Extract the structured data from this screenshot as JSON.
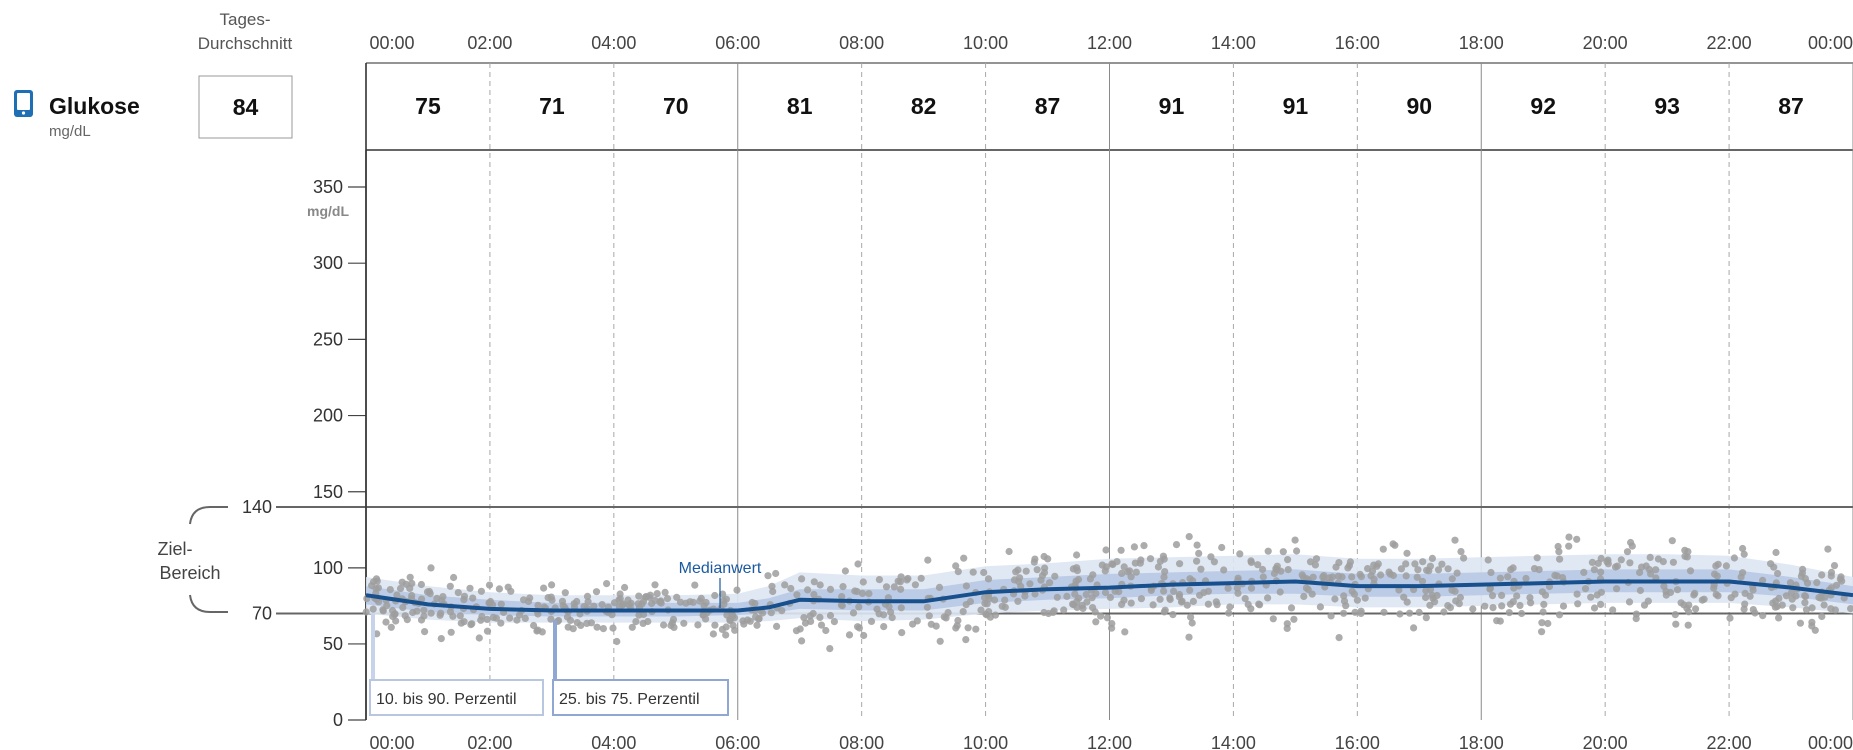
{
  "header": {
    "daily_average_label_line1": "Tages-",
    "daily_average_label_line2": "Durchschnitt",
    "glucose_label": "Glukose",
    "glucose_unit": "mg/dL",
    "daily_average_value": "84",
    "device_icon": "device-phone-icon"
  },
  "hours": [
    "00:00",
    "02:00",
    "04:00",
    "06:00",
    "08:00",
    "10:00",
    "12:00",
    "14:00",
    "16:00",
    "18:00",
    "20:00",
    "22:00",
    "00:00"
  ],
  "hourly_averages": [
    "75",
    "71",
    "70",
    "81",
    "82",
    "87",
    "91",
    "91",
    "90",
    "92",
    "93",
    "87"
  ],
  "colors": {
    "median": "#17508c",
    "iqr_band": "#b8c9e6",
    "outer_band": "#dde5f3",
    "points": "#9e9e9e",
    "target_line": "#666666",
    "icon": "#1f6fb5"
  },
  "chart_data": {
    "type": "line",
    "xlabel": "",
    "ylabel": "mg/dL",
    "xlim": [
      0,
      24
    ],
    "y_ticks": [
      0,
      50,
      70,
      100,
      140,
      150,
      200,
      250,
      300,
      350
    ],
    "target_range": {
      "label_line1": "Ziel-",
      "label_line2": "Bereich",
      "low": 70,
      "high": 140
    },
    "annotations": {
      "median_label": "Medianwert"
    },
    "legend": [
      {
        "name": "10. bis 90. Perzentil"
      },
      {
        "name": "25. bis 75. Perzentil"
      }
    ],
    "hours": [
      0,
      1,
      2,
      3,
      4,
      5,
      6,
      6.5,
      7,
      8,
      9,
      10,
      11,
      12,
      13,
      14,
      15,
      16,
      17,
      18,
      19,
      20,
      21,
      22,
      23,
      24
    ],
    "median": [
      82,
      76,
      73,
      72,
      72,
      72,
      72,
      74,
      79,
      78,
      78,
      84,
      86,
      87,
      89,
      90,
      91,
      88,
      88,
      89,
      90,
      91,
      91,
      91,
      87,
      82
    ],
    "p25": [
      76,
      71,
      69,
      68,
      68,
      68,
      69,
      70,
      73,
      72,
      72,
      77,
      79,
      80,
      82,
      83,
      83,
      81,
      81,
      82,
      83,
      84,
      84,
      84,
      81,
      76
    ],
    "p75": [
      88,
      82,
      79,
      77,
      77,
      77,
      77,
      80,
      86,
      86,
      86,
      92,
      94,
      96,
      97,
      98,
      99,
      96,
      96,
      97,
      98,
      99,
      99,
      99,
      94,
      88
    ],
    "p10": [
      70,
      66,
      64,
      64,
      64,
      64,
      64,
      65,
      67,
      65,
      66,
      70,
      72,
      73,
      74,
      76,
      76,
      74,
      74,
      75,
      76,
      77,
      77,
      77,
      74,
      70
    ],
    "p90": [
      94,
      88,
      84,
      82,
      82,
      82,
      83,
      88,
      97,
      95,
      95,
      101,
      103,
      106,
      107,
      108,
      109,
      106,
      106,
      107,
      108,
      109,
      109,
      108,
      102,
      94
    ]
  }
}
